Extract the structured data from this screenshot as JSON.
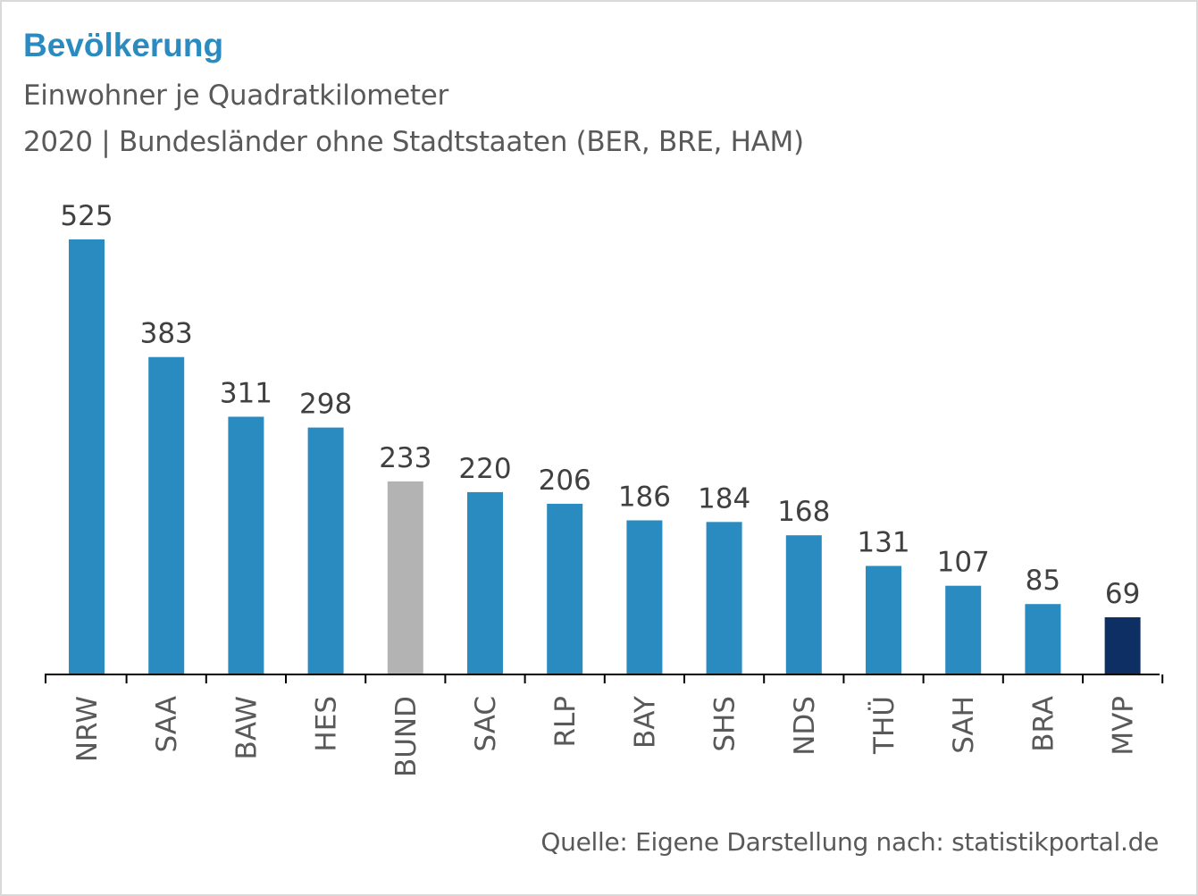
{
  "header": {
    "title": "Bevölkerung",
    "subtitle_line1": "Einwohner je Quadratkilometer",
    "subtitle_line2": "2020 | Bundesländer ohne Stadtstaaten (BER, BRE, HAM)"
  },
  "footer": {
    "source": "Quelle: Eigene Darstellung nach: statistikportal.de"
  },
  "colors": {
    "default_bar": "#2a8bc0",
    "highlight_bund": "#b3b3b3",
    "highlight_last": "#0d2f63",
    "title": "#2a8bc0",
    "text": "#595959",
    "axis": "#000000"
  },
  "chart_data": {
    "type": "bar",
    "title": "Bevölkerung",
    "subtitle": "Einwohner je Quadratkilometer",
    "xlabel": "",
    "ylabel": "",
    "ylim": [
      0,
      525
    ],
    "grid": false,
    "categories": [
      "NRW",
      "SAA",
      "BAW",
      "HES",
      "BUND",
      "SAC",
      "RLP",
      "BAY",
      "SHS",
      "NDS",
      "THÜ",
      "SAH",
      "BRA",
      "MVP"
    ],
    "values": [
      525,
      383,
      311,
      298,
      233,
      220,
      206,
      186,
      184,
      168,
      131,
      107,
      85,
      69
    ],
    "bar_colors": [
      "#2a8bc0",
      "#2a8bc0",
      "#2a8bc0",
      "#2a8bc0",
      "#b3b3b3",
      "#2a8bc0",
      "#2a8bc0",
      "#2a8bc0",
      "#2a8bc0",
      "#2a8bc0",
      "#2a8bc0",
      "#2a8bc0",
      "#2a8bc0",
      "#0d2f63"
    ]
  }
}
